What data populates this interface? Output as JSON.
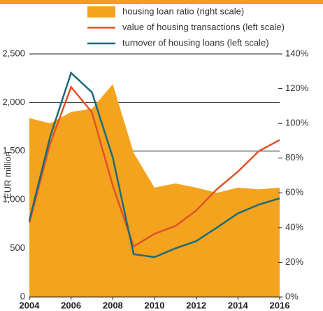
{
  "chart_data": {
    "type": "line",
    "y_label": "EUR million",
    "x": [
      2004,
      2005,
      2006,
      2007,
      2008,
      2009,
      2010,
      2011,
      2012,
      2013,
      2014,
      2015,
      2016
    ],
    "xlim": [
      2004,
      2016
    ],
    "xticks": [
      2004,
      2006,
      2008,
      2010,
      2012,
      2014,
      2016
    ],
    "ylim": [
      0,
      2500
    ],
    "yticks": [
      0,
      500,
      {
        "value": 1000,
        "label": "1,000"
      },
      {
        "value": 1500,
        "label": "1,500"
      },
      {
        "value": 2000,
        "label": "2,000"
      },
      {
        "value": 2500,
        "label": "2,500"
      }
    ],
    "y2lim": [
      0,
      140
    ],
    "y2ticks": [
      {
        "value": 0,
        "label": "0%"
      },
      {
        "value": 20,
        "label": "20%"
      },
      {
        "value": 40,
        "label": "40%"
      },
      {
        "value": 60,
        "label": "60%"
      },
      {
        "value": 80,
        "label": "80%"
      },
      {
        "value": 100,
        "label": "100%"
      },
      {
        "value": 120,
        "label": "120%"
      },
      {
        "value": 140,
        "label": "140%"
      }
    ],
    "grid": true,
    "legend": "top",
    "series": [
      {
        "name": "housing loan ratio (right scale)",
        "kind": "area",
        "axis": "y2",
        "color": "#f4a31e",
        "values": [
          103,
          100,
          106.5,
          108.5,
          122.6,
          83,
          63,
          65.4,
          63,
          60,
          63,
          62,
          63
        ]
      },
      {
        "name": "value of housing transactions (left scale)",
        "kind": "line",
        "color": "#e0522a",
        "values": [
          764,
          1578,
          2160,
          1900,
          1145,
          520,
          650,
          730,
          890,
          1110,
          1290,
          1500,
          1615
        ]
      },
      {
        "name": "turnover of housing loans (left scale)",
        "kind": "line",
        "color": "#1b6b78",
        "values": [
          785,
          1650,
          2305,
          2105,
          1435,
          440,
          410,
          500,
          575,
          715,
          860,
          950,
          1015
        ]
      }
    ]
  }
}
